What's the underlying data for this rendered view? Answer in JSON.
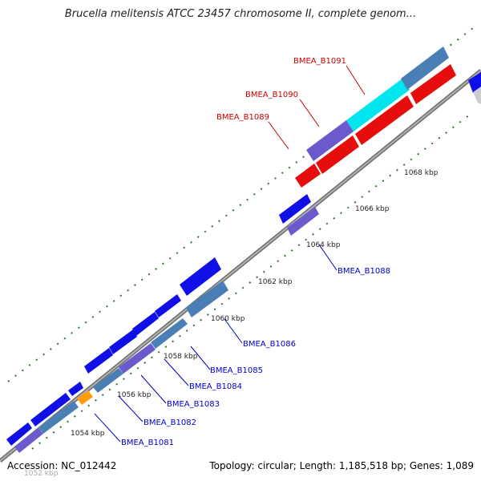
{
  "title": "Brucella melitensis ATCC 23457 chromosome II, complete genom...",
  "accession": "Accession: NC_012442",
  "topology": "Topology: circular; Length: 1,185,518 bp; Genes: 1,089",
  "colors": {
    "blue": "#1010e6",
    "steelblue": "#4a7fb5",
    "slate": "#6a5acd",
    "cyan": "#00e5ee",
    "red": "#e60d0d",
    "orange": "#ff9d0a",
    "backbone": "#8c8c8c",
    "ticks": "#2a7a2a",
    "red_label": "#cc0000",
    "blue_label": "#0000cc"
  },
  "scale_labels": [
    "1054 kbp",
    "1056 kbp",
    "1058 kbp",
    "1060 kbp",
    "1062 kbp",
    "1064 kbp",
    "1066 kbp",
    "1068 kbp"
  ],
  "partial_label": "1052 kbp",
  "gene_labels_blue": [
    "BMEA_B1081",
    "BMEA_B1082",
    "BMEA_B1083",
    "BMEA_B1084",
    "BMEA_B1085",
    "BMEA_B1086",
    "BMEA_B1088"
  ],
  "gene_labels_red": [
    "BMEA_B1089",
    "BMEA_B1090",
    "BMEA_B1091"
  ]
}
